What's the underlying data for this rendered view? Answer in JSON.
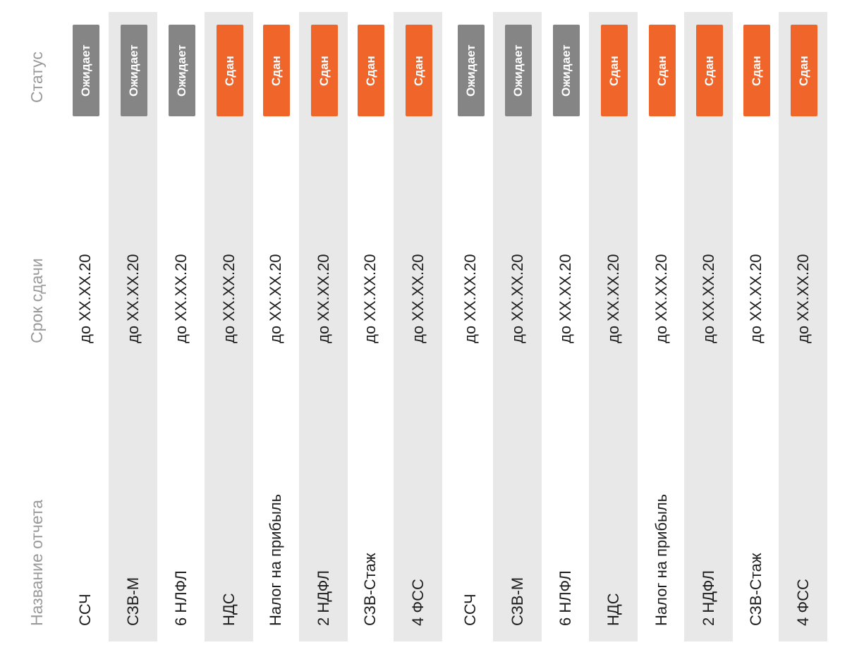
{
  "headers": {
    "status": "Статус",
    "deadline": "Срок сдачи",
    "report_name": "Название отчета"
  },
  "colors": {
    "pending": "#858585",
    "submitted": "#f0662a",
    "row_shade": "#e8e8e8"
  },
  "rows": [
    {
      "name": "ССЧ",
      "deadline": "до XX.XX.20",
      "status": "Ожидает",
      "state": "pending"
    },
    {
      "name": "СЗВ-М",
      "deadline": "до XX.XX.20",
      "status": "Ожидает",
      "state": "pending"
    },
    {
      "name": "6 НЛФЛ",
      "deadline": "до XX.XX.20",
      "status": "Ожидает",
      "state": "pending"
    },
    {
      "name": "НДС",
      "deadline": "до XX.XX.20",
      "status": "Сдан",
      "state": "submitted"
    },
    {
      "name": "Налог на прибыль",
      "deadline": "до XX.XX.20",
      "status": "Сдан",
      "state": "submitted"
    },
    {
      "name": "2 НДФЛ",
      "deadline": "до XX.XX.20",
      "status": "Сдан",
      "state": "submitted"
    },
    {
      "name": "СЗВ-Стаж",
      "deadline": "до XX.XX.20",
      "status": "Сдан",
      "state": "submitted"
    },
    {
      "name": "4 ФСС",
      "deadline": "до XX.XX.20",
      "status": "Сдан",
      "state": "submitted"
    },
    {
      "name": "ССЧ",
      "deadline": "до XX.XX.20",
      "status": "Ожидает",
      "state": "pending"
    },
    {
      "name": "СЗВ-М",
      "deadline": "до XX.XX.20",
      "status": "Ожидает",
      "state": "pending"
    },
    {
      "name": "6 НЛФЛ",
      "deadline": "до XX.XX.20",
      "status": "Ожидает",
      "state": "pending"
    },
    {
      "name": "НДС",
      "deadline": "до XX.XX.20",
      "status": "Сдан",
      "state": "submitted"
    },
    {
      "name": "Налог на прибыль",
      "deadline": "до XX.XX.20",
      "status": "Сдан",
      "state": "submitted"
    },
    {
      "name": "2 НДФЛ",
      "deadline": "до XX.XX.20",
      "status": "Сдан",
      "state": "submitted"
    },
    {
      "name": "СЗВ-Стаж",
      "deadline": "до XX.XX.20",
      "status": "Сдан",
      "state": "submitted"
    },
    {
      "name": "4 ФСС",
      "deadline": "до XX.XX.20",
      "status": "Сдан",
      "state": "submitted"
    }
  ]
}
